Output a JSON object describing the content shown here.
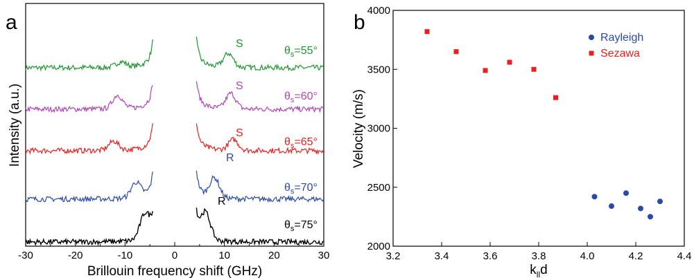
{
  "chart_data": [
    {
      "panel": "a",
      "type": "line",
      "xlabel": "Brillouin frequency shift (GHz)",
      "ylabel": "Intensity (a.u.)",
      "xlim": [
        -30,
        30
      ],
      "xticks": [
        -30,
        -20,
        -10,
        0,
        10,
        20,
        30
      ],
      "series": [
        {
          "label": "θs=55°",
          "color": "#1e9632",
          "labels": [
            "S"
          ],
          "peaks": [
            {
              "x": -10.8,
              "amp": 0.35
            },
            {
              "x": 10.8,
              "amp": 0.9
            }
          ]
        },
        {
          "label": "θs=60°",
          "color": "#b045b8",
          "labels": [
            "S"
          ],
          "peaks": [
            {
              "x": -11.5,
              "amp": 0.9
            },
            {
              "x": 11.3,
              "amp": 1.0
            }
          ]
        },
        {
          "label": "θs=65°",
          "color": "#e8201e",
          "labels": [
            "S"
          ],
          "peaks": [
            {
              "x": -12.3,
              "amp": 0.6
            },
            {
              "x": 11.8,
              "amp": 0.7
            }
          ]
        },
        {
          "label": "θs=70°",
          "color": "#2b4aa6",
          "labels": [
            "R"
          ],
          "peaks": [
            {
              "x": -7.8,
              "amp": 1.0
            },
            {
              "x": 8.0,
              "amp": 1.3
            }
          ]
        },
        {
          "label": "θs=75°",
          "color": "#000000",
          "labels": [
            "R"
          ],
          "peaks": [
            {
              "x": -6.0,
              "amp": 1.6
            },
            {
              "x": 6.2,
              "amp": 1.7
            }
          ]
        }
      ]
    },
    {
      "panel": "b",
      "type": "scatter",
      "xlabel": "k",
      "xlabel_sub": "ll",
      "xlabel_suffix": "d",
      "ylabel": "Velocity (m/s)",
      "xlim": [
        3.2,
        4.4
      ],
      "ylim": [
        2000,
        4000
      ],
      "xticks": [
        3.2,
        3.4,
        3.6,
        3.8,
        4.0,
        4.2,
        4.4
      ],
      "yticks": [
        2000,
        2500,
        3000,
        3500,
        4000
      ],
      "legend_position": "top-right",
      "series": [
        {
          "name": "Rayleigh",
          "marker": "circle",
          "color": "#2b4aa6",
          "x": [
            4.03,
            4.1,
            4.16,
            4.22,
            4.26,
            4.3
          ],
          "y": [
            2420,
            2340,
            2450,
            2320,
            2250,
            2380
          ]
        },
        {
          "name": "Sezawa",
          "marker": "square",
          "color": "#e8201e",
          "x": [
            3.34,
            3.46,
            3.58,
            3.68,
            3.78,
            3.87
          ],
          "y": [
            3820,
            3650,
            3490,
            3560,
            3500,
            3260
          ]
        }
      ]
    }
  ],
  "panels": {
    "a_label": "a",
    "b_label": "b"
  },
  "theta_prefix": "θ",
  "theta_sub": "s"
}
